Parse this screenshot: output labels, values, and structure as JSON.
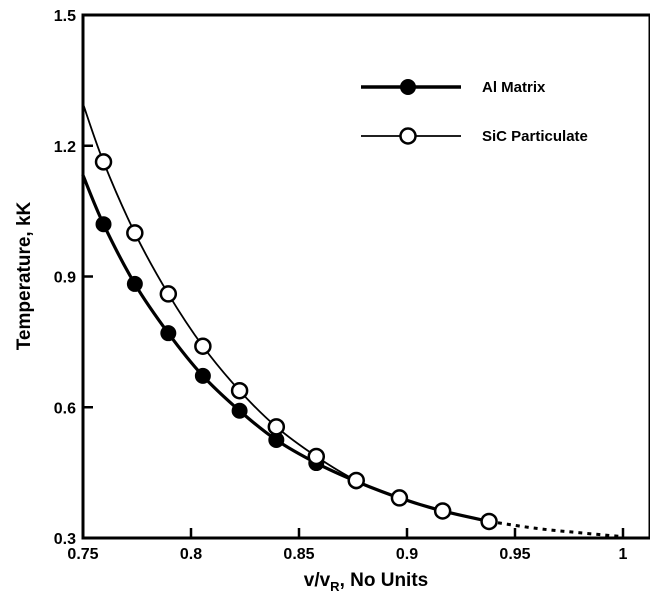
{
  "chart_data": {
    "type": "line",
    "title": "",
    "xlabel": {
      "main": "v/v",
      "sub": "R",
      "suffix": ", No Units"
    },
    "ylabel": "Temperature, kK",
    "xlim": [
      0.75,
      1.0125
    ],
    "ylim": [
      0.3,
      1.5
    ],
    "x_ticks": [
      0.75,
      0.8,
      0.85,
      0.9,
      0.95,
      1.0
    ],
    "x_tick_labels": [
      "0.75",
      "0.8",
      "0.85",
      "0.9",
      "0.95",
      "1"
    ],
    "y_ticks": [
      0.3,
      0.6,
      0.9,
      1.2,
      1.5
    ],
    "y_tick_labels": [
      "0.3",
      "0.6",
      "0.9",
      "1.2",
      "1.5"
    ],
    "grid": false,
    "legend_position": "top-right",
    "series": [
      {
        "name": "Al Matrix",
        "marker": "filled-circle",
        "line": "thick",
        "points": [
          {
            "x": 0.7595,
            "y": 1.02
          },
          {
            "x": 0.774,
            "y": 0.883
          },
          {
            "x": 0.7895,
            "y": 0.77
          },
          {
            "x": 0.8055,
            "y": 0.672
          },
          {
            "x": 0.8225,
            "y": 0.592
          },
          {
            "x": 0.8395,
            "y": 0.525
          },
          {
            "x": 0.858,
            "y": 0.472
          },
          {
            "x": 0.8765,
            "y": 0.43
          },
          {
            "x": 0.8965,
            "y": 0.392
          },
          {
            "x": 0.9165,
            "y": 0.362
          },
          {
            "x": 0.938,
            "y": 0.338
          }
        ]
      },
      {
        "name": "SiC Particulate",
        "marker": "open-circle",
        "line": "thin",
        "points": [
          {
            "x": 0.7595,
            "y": 1.163
          },
          {
            "x": 0.774,
            "y": 1.0
          },
          {
            "x": 0.7895,
            "y": 0.86
          },
          {
            "x": 0.8055,
            "y": 0.74
          },
          {
            "x": 0.8225,
            "y": 0.638
          },
          {
            "x": 0.8395,
            "y": 0.555
          },
          {
            "x": 0.858,
            "y": 0.487
          },
          {
            "x": 0.8765,
            "y": 0.432
          },
          {
            "x": 0.8965,
            "y": 0.392
          },
          {
            "x": 0.9165,
            "y": 0.362
          },
          {
            "x": 0.938,
            "y": 0.338
          }
        ]
      }
    ],
    "extrapolation": {
      "style": "dotted",
      "points": [
        {
          "x": 0.938,
          "y": 0.338
        },
        {
          "x": 0.96,
          "y": 0.322
        },
        {
          "x": 0.98,
          "y": 0.312
        },
        {
          "x": 1.0,
          "y": 0.303
        }
      ]
    }
  }
}
